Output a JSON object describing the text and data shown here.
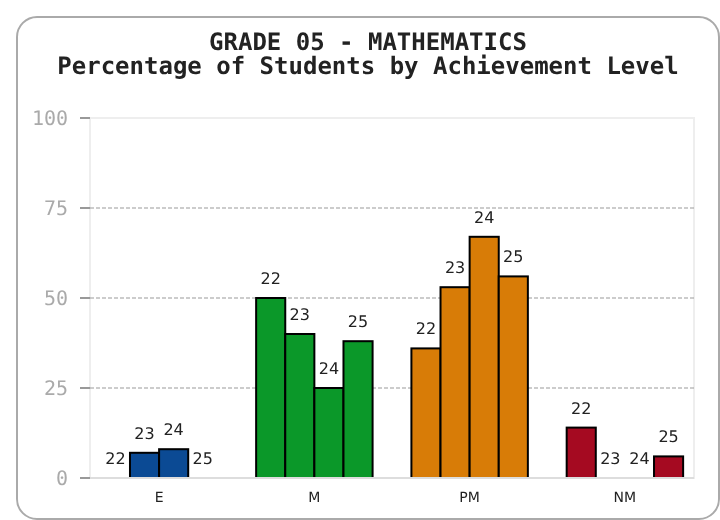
{
  "chart_data": {
    "type": "bar",
    "title": "GRADE 05 - MATHEMATICS",
    "subtitle": "Percentage of Students by Achievement Level",
    "categories": [
      "E",
      "M",
      "PM",
      "NM"
    ],
    "series": [
      {
        "name": "22",
        "colors": [
          "#0b4a94",
          "#0b9829",
          "#d87c07",
          "#a50a21"
        ],
        "values": [
          0,
          50,
          36,
          14
        ]
      },
      {
        "name": "23",
        "colors": [
          "#0b4a94",
          "#0b9829",
          "#d87c07",
          "#a50a21"
        ],
        "values": [
          7,
          40,
          53,
          0
        ]
      },
      {
        "name": "24",
        "colors": [
          "#0b4a94",
          "#0b9829",
          "#d87c07",
          "#a50a21"
        ],
        "values": [
          8,
          25,
          67,
          0
        ]
      },
      {
        "name": "25",
        "colors": [
          "#0b4a94",
          "#0b9829",
          "#d87c07",
          "#a50a21"
        ],
        "values": [
          0,
          38,
          56,
          6
        ]
      }
    ],
    "ylim": [
      0,
      100
    ],
    "yticks": [
      0,
      25,
      50,
      75,
      100
    ],
    "grid": "y",
    "legend": false
  }
}
